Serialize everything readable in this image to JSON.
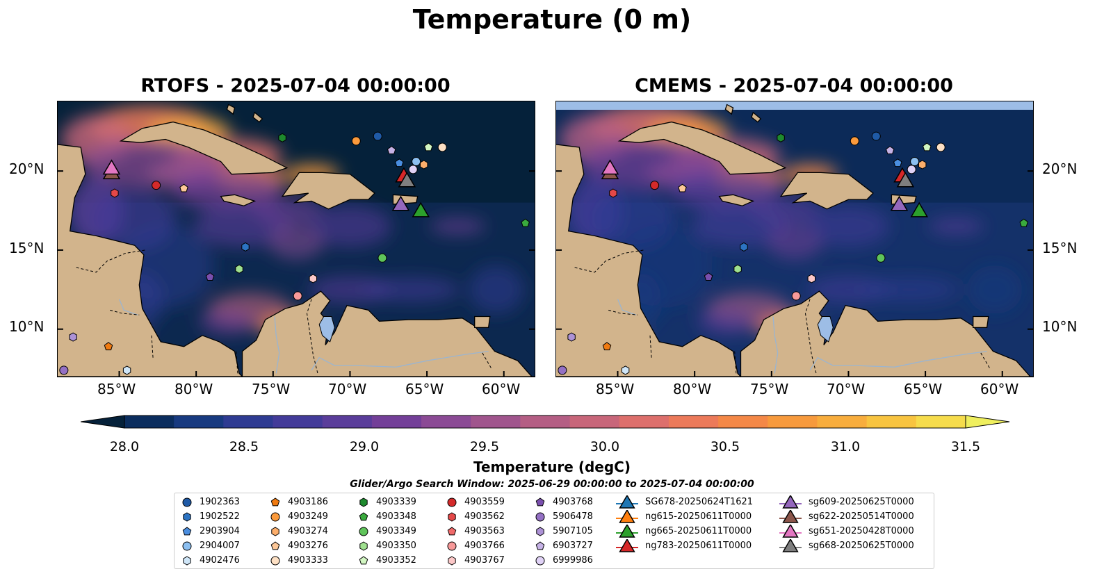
{
  "figure": {
    "suptitle": "Temperature (0 m)",
    "panels": [
      {
        "title": "RTOFS - 2025-07-04 00:00:00"
      },
      {
        "title": "CMEMS - 2025-07-04 00:00:00"
      }
    ],
    "lat_labels": [
      "20°N",
      "15°N",
      "10°N"
    ],
    "lon_labels": [
      "85°W",
      "80°W",
      "75°W",
      "70°W",
      "65°W",
      "60°W"
    ],
    "colorbar": {
      "label": "Temperature (degC)",
      "ticks": [
        "28.0",
        "28.5",
        "29.0",
        "29.5",
        "30.0",
        "30.5",
        "31.0",
        "31.5"
      ],
      "colors": [
        "#05213a",
        "#0b2d5e",
        "#183a80",
        "#2e3b92",
        "#433b99",
        "#5a3d9a",
        "#733f98",
        "#8b4a95",
        "#a0558d",
        "#b45e84",
        "#c8667a",
        "#dd6f6c",
        "#ec7a5a",
        "#f48847",
        "#f79a3d",
        "#f8ad3d",
        "#f8c440",
        "#f6dc4c",
        "#efef5e"
      ]
    },
    "legend": {
      "title": "Glider/Argo Search Window: 2025-06-29 00:00:00 to 2025-07-04 00:00:00",
      "columns": [
        [
          {
            "label": "1902363",
            "shape": "circle",
            "color": "#1f5aa6"
          },
          {
            "label": "1902522",
            "shape": "hexagon",
            "color": "#2c73c2"
          },
          {
            "label": "2903904",
            "shape": "pentagon",
            "color": "#4a8ee0"
          },
          {
            "label": "2904007",
            "shape": "circle",
            "color": "#8cbff0"
          },
          {
            "label": "4902476",
            "shape": "hexagon",
            "color": "#cfe6f8"
          }
        ],
        [
          {
            "label": "4903186",
            "shape": "pentagon",
            "color": "#f07a10"
          },
          {
            "label": "4903249",
            "shape": "circle",
            "color": "#fb9a3c"
          },
          {
            "label": "4903274",
            "shape": "hexagon",
            "color": "#fcae6b"
          },
          {
            "label": "4903276",
            "shape": "pentagon",
            "color": "#fdc898"
          },
          {
            "label": "4903333",
            "shape": "circle",
            "color": "#fde0c4"
          }
        ],
        [
          {
            "label": "4903339",
            "shape": "hexagon",
            "color": "#1e8a2e"
          },
          {
            "label": "4903348",
            "shape": "pentagon",
            "color": "#3aaa3e"
          },
          {
            "label": "4903349",
            "shape": "circle",
            "color": "#5fc45a"
          },
          {
            "label": "4903350",
            "shape": "hexagon",
            "color": "#9fe08f"
          },
          {
            "label": "4903352",
            "shape": "pentagon",
            "color": "#d2f6c2"
          }
        ],
        [
          {
            "label": "4903559",
            "shape": "circle",
            "color": "#d42a2a"
          },
          {
            "label": "4903562",
            "shape": "hexagon",
            "color": "#e44848"
          },
          {
            "label": "4903563",
            "shape": "pentagon",
            "color": "#f06a6a"
          },
          {
            "label": "4903766",
            "shape": "circle",
            "color": "#f89a9a"
          },
          {
            "label": "4903767",
            "shape": "hexagon",
            "color": "#fcc8c8"
          }
        ],
        [
          {
            "label": "4903768",
            "shape": "pentagon",
            "color": "#7a4fae"
          },
          {
            "label": "5906478",
            "shape": "circle",
            "color": "#9470c4"
          },
          {
            "label": "5907105",
            "shape": "hexagon",
            "color": "#ad92d6"
          },
          {
            "label": "6903727",
            "shape": "pentagon",
            "color": "#c6b2e6"
          },
          {
            "label": "6999986",
            "shape": "circle",
            "color": "#e0d2f6"
          }
        ],
        [
          {
            "label": "SG678-20250624T1621",
            "shape": "triangle",
            "color": "#1f77b4"
          },
          {
            "label": "ng615-20250611T0000",
            "shape": "triangle",
            "color": "#ff7f0e"
          },
          {
            "label": "ng665-20250611T0000",
            "shape": "triangle",
            "color": "#2ca02c"
          },
          {
            "label": "ng783-20250611T0000",
            "shape": "triangle",
            "color": "#d62728"
          }
        ],
        [
          {
            "label": "sg609-20250625T0000",
            "shape": "triangle",
            "color": "#9467bd"
          },
          {
            "label": "sg622-20250514T0000",
            "shape": "triangle",
            "color": "#8c564b"
          },
          {
            "label": "sg651-20250428T0000",
            "shape": "triangle",
            "color": "#e377c2"
          },
          {
            "label": "sg668-20250625T0000",
            "shape": "triangle",
            "color": "#7f7f7f"
          }
        ]
      ]
    }
  },
  "map_data": {
    "extent_lon": [
      -89,
      -58
    ],
    "extent_lat": [
      7,
      24.4
    ],
    "argo_floats": [
      {
        "id": "1902363",
        "lon": -68.2,
        "lat": 22.2
      },
      {
        "id": "1902522",
        "lon": -76.8,
        "lat": 15.2
      },
      {
        "id": "2903904",
        "lon": -66.8,
        "lat": 20.5
      },
      {
        "id": "2904007",
        "lon": -65.7,
        "lat": 20.6
      },
      {
        "id": "4902476",
        "lon": -84.5,
        "lat": 7.4
      },
      {
        "id": "4903186",
        "lon": -85.7,
        "lat": 8.9
      },
      {
        "id": "4903249",
        "lon": -69.6,
        "lat": 21.9
      },
      {
        "id": "4903274",
        "lon": -65.2,
        "lat": 20.4
      },
      {
        "id": "4903276",
        "lon": -80.8,
        "lat": 18.9
      },
      {
        "id": "4903333",
        "lon": -64.0,
        "lat": 21.5
      },
      {
        "id": "4903339",
        "lon": -74.4,
        "lat": 22.1
      },
      {
        "id": "4903348",
        "lon": -58.6,
        "lat": 16.7
      },
      {
        "id": "4903349",
        "lon": -67.9,
        "lat": 14.5
      },
      {
        "id": "4903350",
        "lon": -77.2,
        "lat": 13.8
      },
      {
        "id": "4903352",
        "lon": -64.9,
        "lat": 21.5
      },
      {
        "id": "4903559",
        "lon": -82.6,
        "lat": 19.1
      },
      {
        "id": "4903562",
        "lon": -85.3,
        "lat": 18.6
      },
      {
        "id": "4903563",
        "lon": -66.5,
        "lat": 19.5
      },
      {
        "id": "4903766",
        "lon": -73.4,
        "lat": 12.1
      },
      {
        "id": "4903767",
        "lon": -72.4,
        "lat": 13.2
      },
      {
        "id": "4903768",
        "lon": -79.1,
        "lat": 13.3
      },
      {
        "id": "5906478",
        "lon": -88.6,
        "lat": 7.4
      },
      {
        "id": "5907105",
        "lon": -88.0,
        "lat": 9.5
      },
      {
        "id": "6903727",
        "lon": -67.3,
        "lat": 21.3
      },
      {
        "id": "6999986",
        "lon": -65.9,
        "lat": 20.1
      }
    ],
    "gliders": [
      {
        "id": "ng783-20250611T0000",
        "lon": -66.5,
        "lat": 19.6
      },
      {
        "id": "sg668-20250625T0000",
        "lon": -66.3,
        "lat": 19.3
      },
      {
        "id": "sg609-20250625T0000",
        "lon": -66.7,
        "lat": 17.8
      },
      {
        "id": "ng665-20250611T0000",
        "lon": -65.4,
        "lat": 17.4
      },
      {
        "id": "sg622-20250514T0000",
        "lon": -85.5,
        "lat": 19.8
      },
      {
        "id": "sg651-20250428T0000",
        "lon": -85.5,
        "lat": 20.1
      }
    ]
  }
}
